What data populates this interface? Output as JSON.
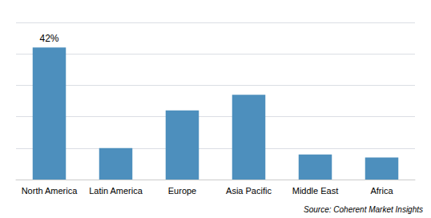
{
  "chart_data": {
    "type": "bar",
    "categories": [
      "North America",
      "Latin America",
      "Europe",
      "Asia Pacific",
      "Middle East",
      "Africa"
    ],
    "values": [
      42,
      10,
      22,
      27,
      8,
      7
    ],
    "color": "#4d8fbd",
    "ylim": [
      0,
      50
    ],
    "yticks": [
      0,
      10,
      20,
      30,
      40,
      50
    ],
    "grid": true,
    "tick_labels": "x",
    "annotations": [
      {
        "category": "North America",
        "text": "42%"
      }
    ],
    "source": "Source: Coherent Market Insights"
  }
}
